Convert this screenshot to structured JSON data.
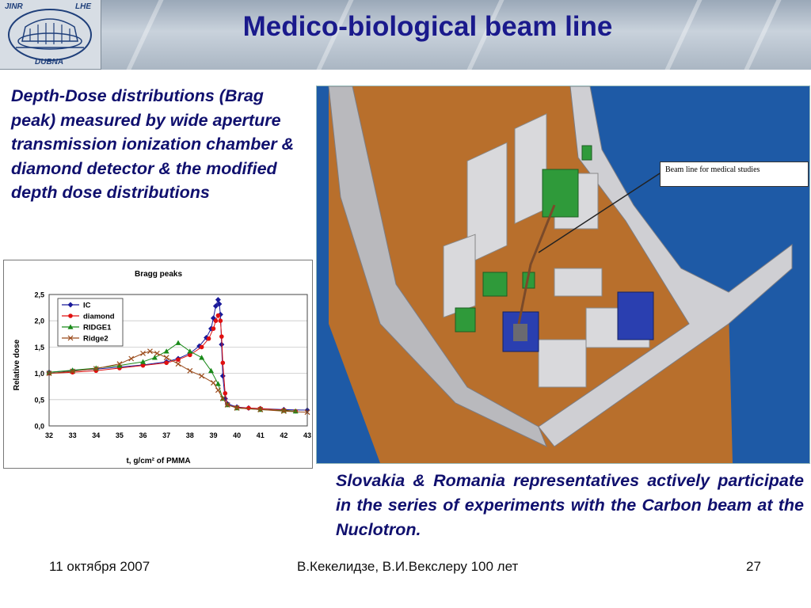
{
  "header": {
    "logo": {
      "top_left": "JINR",
      "top_right": "LHE",
      "bottom": "DUBNA"
    },
    "title": "Medico-biological beam line"
  },
  "left_text": "Depth-Dose distributions (Brag peak) measured by wide aperture transmission ionization chamber & diamond detector & the modified depth dose distributions",
  "render": {
    "callout": "Beam line for medical studies",
    "colors": {
      "sky": "#1e5aa6",
      "floor": "#b86f2c",
      "wall": "#b9b9bd",
      "magnet": "#2f9a3a"
    }
  },
  "right_text": "Slovakia & Romania representatives actively participate in the series of experiments with the Carbon beam at the Nuclotron.",
  "footer": {
    "date": "11 октября 2007",
    "center": "В.Кекелидзе,   В.И.Векслеру 100 лет",
    "page": "27"
  },
  "chart_data": {
    "type": "line",
    "title": "Bragg peaks",
    "xlabel": "t, g/cm² of PMMA",
    "ylabel": "Relative dose",
    "xlim": [
      32,
      43
    ],
    "ylim": [
      0.0,
      2.5
    ],
    "x_ticks": [
      "32",
      "33",
      "34",
      "35",
      "36",
      "37",
      "38",
      "39",
      "40",
      "41",
      "42",
      "43"
    ],
    "y_ticks": [
      "0,0",
      "0,5",
      "1,0",
      "1,5",
      "2,0",
      "2,5"
    ],
    "legend": "top-left",
    "series": [
      {
        "name": "IC",
        "color": "#1a1a9a",
        "marker": "diamond",
        "points": [
          [
            32,
            1.02
          ],
          [
            33,
            1.05
          ],
          [
            34,
            1.08
          ],
          [
            35,
            1.12
          ],
          [
            36,
            1.16
          ],
          [
            37,
            1.22
          ],
          [
            37.5,
            1.28
          ],
          [
            38,
            1.38
          ],
          [
            38.4,
            1.52
          ],
          [
            38.7,
            1.68
          ],
          [
            38.9,
            1.85
          ],
          [
            39.0,
            2.05
          ],
          [
            39.1,
            2.28
          ],
          [
            39.2,
            2.4
          ],
          [
            39.25,
            2.32
          ],
          [
            39.3,
            2.12
          ],
          [
            39.35,
            1.55
          ],
          [
            39.4,
            0.95
          ],
          [
            39.5,
            0.52
          ],
          [
            39.6,
            0.42
          ],
          [
            40,
            0.36
          ],
          [
            40.5,
            0.34
          ],
          [
            41,
            0.33
          ],
          [
            42,
            0.31
          ],
          [
            43,
            0.3
          ]
        ]
      },
      {
        "name": "diamond",
        "color": "#e01010",
        "marker": "circle",
        "points": [
          [
            32,
            1.0
          ],
          [
            33,
            1.02
          ],
          [
            34,
            1.05
          ],
          [
            35,
            1.1
          ],
          [
            36,
            1.15
          ],
          [
            37,
            1.2
          ],
          [
            37.5,
            1.26
          ],
          [
            38,
            1.35
          ],
          [
            38.5,
            1.5
          ],
          [
            38.8,
            1.66
          ],
          [
            39.0,
            1.85
          ],
          [
            39.1,
            2.0
          ],
          [
            39.2,
            2.1
          ],
          [
            39.3,
            2.0
          ],
          [
            39.35,
            1.7
          ],
          [
            39.4,
            1.2
          ],
          [
            39.5,
            0.62
          ],
          [
            39.6,
            0.4
          ],
          [
            40,
            0.35
          ],
          [
            40.5,
            0.34
          ],
          [
            41,
            0.33
          ],
          [
            42,
            0.3
          ],
          [
            42.5,
            0.28
          ]
        ]
      },
      {
        "name": "RIDGE1",
        "color": "#1a8a1a",
        "marker": "triangle",
        "points": [
          [
            32,
            1.02
          ],
          [
            33,
            1.06
          ],
          [
            34,
            1.1
          ],
          [
            35,
            1.15
          ],
          [
            36,
            1.22
          ],
          [
            36.5,
            1.3
          ],
          [
            37,
            1.42
          ],
          [
            37.5,
            1.58
          ],
          [
            38,
            1.42
          ],
          [
            38.5,
            1.3
          ],
          [
            38.9,
            1.05
          ],
          [
            39.2,
            0.8
          ],
          [
            39.4,
            0.52
          ],
          [
            39.6,
            0.4
          ],
          [
            40,
            0.34
          ],
          [
            41,
            0.31
          ],
          [
            42,
            0.29
          ],
          [
            42.5,
            0.28
          ]
        ]
      },
      {
        "name": "Ridge2",
        "color": "#9a4a1a",
        "marker": "x",
        "points": [
          [
            32,
            1.0
          ],
          [
            33,
            1.04
          ],
          [
            34,
            1.09
          ],
          [
            35,
            1.18
          ],
          [
            35.5,
            1.28
          ],
          [
            36,
            1.38
          ],
          [
            36.3,
            1.42
          ],
          [
            36.6,
            1.38
          ],
          [
            37,
            1.3
          ],
          [
            37.5,
            1.18
          ],
          [
            38,
            1.05
          ],
          [
            38.5,
            0.95
          ],
          [
            39,
            0.82
          ],
          [
            39.2,
            0.68
          ],
          [
            39.4,
            0.52
          ],
          [
            39.6,
            0.4
          ],
          [
            40,
            0.34
          ],
          [
            41,
            0.31
          ],
          [
            42,
            0.28
          ],
          [
            43,
            0.26
          ]
        ]
      }
    ]
  }
}
